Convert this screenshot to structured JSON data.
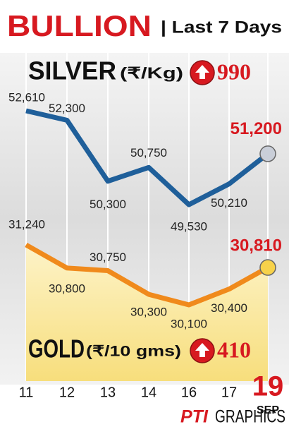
{
  "chart_data": {
    "type": "line",
    "title": "BULLION",
    "subtitle": "| Last 7 Days",
    "categories": [
      "11",
      "12",
      "13",
      "14",
      "16",
      "17",
      "19"
    ],
    "month": "SEP",
    "series": [
      {
        "name": "SILVER",
        "unit": "(₹/Kg)",
        "change": 990,
        "color": "#1f5f9a",
        "marker_color": "#c9ced8",
        "values": [
          52610,
          52300,
          50300,
          50750,
          49530,
          50210,
          51200
        ],
        "value_labels": [
          "52,610",
          "52,300",
          "50,300",
          "50,750",
          "49,530",
          "50,210",
          "51,200"
        ]
      },
      {
        "name": "GOLD",
        "unit": "(₹/10 gms)",
        "change": 410,
        "color": "#f08a1c",
        "marker_color": "#f7d24a",
        "values": [
          31240,
          30800,
          30750,
          30300,
          30100,
          30400,
          30810
        ],
        "value_labels": [
          "31,240",
          "30,800",
          "30,750",
          "30,300",
          "30,100",
          "30,400",
          "30,810"
        ]
      }
    ],
    "source_logo": "PTI",
    "source": "GRAPHICS",
    "grid": true
  }
}
